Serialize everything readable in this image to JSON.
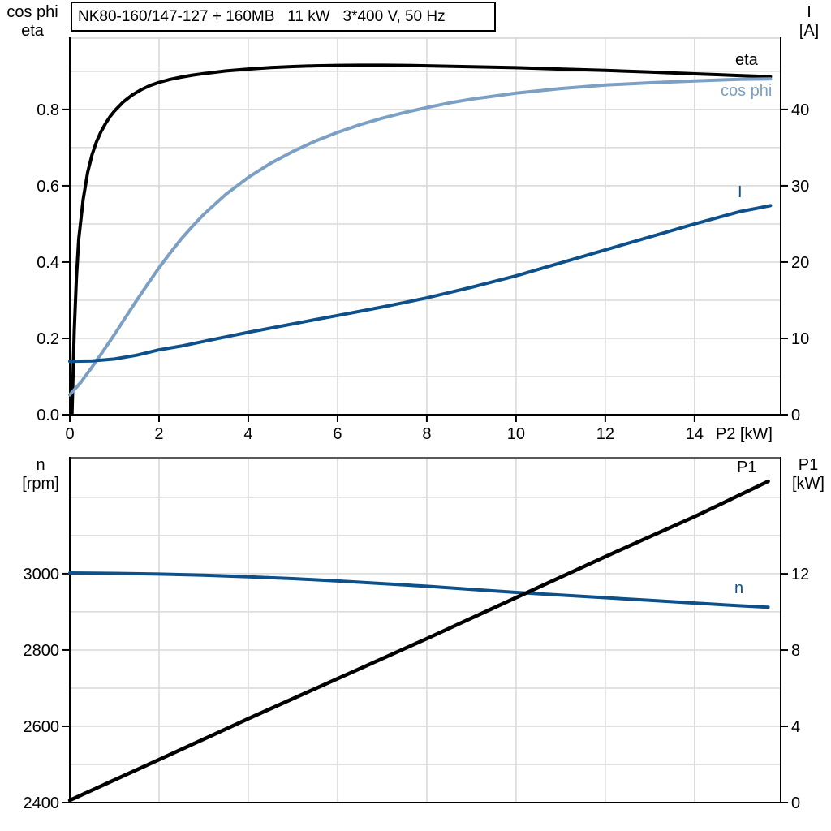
{
  "title_box": {
    "text": "NK80-160/147-127 + 160MB   11 kW   3*400 V, 50 Hz"
  },
  "corner_labels": {
    "top_left_line1": "cos phi",
    "top_left_line2": "eta",
    "top_right_line1": "I",
    "top_right_line2": "[A]",
    "bottom_left_line1": "n",
    "bottom_left_line2": "[rpm]",
    "bottom_right_line1": "P1",
    "bottom_right_line2": "[kW]"
  },
  "colors": {
    "black": "#000000",
    "light_blue": "#7BA0C4",
    "dark_blue": "#0E518A",
    "grid": "#D8D8D8",
    "frame_top_upper": "#D4D4D4",
    "frame_top_lower": "#595959",
    "axis": "#000000",
    "background": "#FFFFFF"
  },
  "chart_data": [
    {
      "type": "line",
      "title": "NK80-160/147-127 + 160MB   11 kW   3*400 V, 50 Hz",
      "xlabel": "P2 [kW]",
      "ylabel_left": "cos phi / eta",
      "ylabel_right": "I [A]",
      "x_range": [
        0,
        15.93
      ],
      "left_range": [
        0,
        0.987
      ],
      "right_range": [
        0,
        49.35
      ],
      "grid": true,
      "grid_x": [
        2,
        4,
        6,
        8,
        10,
        12,
        14
      ],
      "grid_left": [
        0.1,
        0.2,
        0.3,
        0.4,
        0.5,
        0.6,
        0.7,
        0.8,
        0.9
      ],
      "x_ticks": [
        [
          0,
          "0"
        ],
        [
          2,
          "2"
        ],
        [
          4,
          "4"
        ],
        [
          6,
          "6"
        ],
        [
          8,
          "8"
        ],
        [
          10,
          "10"
        ],
        [
          12,
          "12"
        ],
        [
          14,
          "14"
        ]
      ],
      "left_ticks": [
        [
          0,
          "0.0"
        ],
        [
          0.2,
          "0.2"
        ],
        [
          0.4,
          "0.4"
        ],
        [
          0.6,
          "0.6"
        ],
        [
          0.8,
          "0.8"
        ]
      ],
      "right_ticks": [
        [
          0,
          "0"
        ],
        [
          10,
          "10"
        ],
        [
          20,
          "20"
        ],
        [
          30,
          "30"
        ],
        [
          40,
          "40"
        ]
      ],
      "series": [
        {
          "name": "eta",
          "label": "eta",
          "color": "black",
          "axis": "left",
          "width": 4,
          "x": [
            0.05,
            0.1,
            0.15,
            0.2,
            0.3,
            0.4,
            0.5,
            0.6,
            0.7,
            0.8,
            0.9,
            1.0,
            1.2,
            1.4,
            1.6,
            1.8,
            2.0,
            2.25,
            2.5,
            2.75,
            3.0,
            3.5,
            4.0,
            4.5,
            5.0,
            5.5,
            6.0,
            6.5,
            7.0,
            7.5,
            8.0,
            9.0,
            10.0,
            11.0,
            12.0,
            13.0,
            14.0,
            15.0,
            15.7
          ],
          "y": [
            0.0,
            0.22,
            0.36,
            0.46,
            0.565,
            0.635,
            0.682,
            0.716,
            0.742,
            0.763,
            0.781,
            0.796,
            0.82,
            0.838,
            0.852,
            0.863,
            0.871,
            0.879,
            0.885,
            0.89,
            0.894,
            0.901,
            0.906,
            0.91,
            0.9125,
            0.9145,
            0.9155,
            0.916,
            0.916,
            0.9155,
            0.9145,
            0.912,
            0.9095,
            0.906,
            0.9025,
            0.898,
            0.8935,
            0.889,
            0.886
          ]
        },
        {
          "name": "cos phi",
          "label": "cos phi",
          "color": "light_blue",
          "axis": "left",
          "width": 4,
          "x": [
            0,
            0.25,
            0.5,
            0.75,
            1.0,
            1.25,
            1.5,
            1.75,
            2.0,
            2.25,
            2.5,
            2.75,
            3.0,
            3.5,
            4.0,
            4.5,
            5.0,
            5.5,
            6.0,
            6.5,
            7.0,
            7.5,
            8.0,
            8.5,
            9.0,
            9.5,
            10.0,
            11.0,
            12.0,
            13.0,
            14.0,
            15.0,
            15.7
          ],
          "y": [
            0.052,
            0.085,
            0.125,
            0.167,
            0.21,
            0.255,
            0.3,
            0.343,
            0.385,
            0.424,
            0.461,
            0.494,
            0.525,
            0.578,
            0.622,
            0.659,
            0.69,
            0.717,
            0.74,
            0.76,
            0.777,
            0.792,
            0.805,
            0.817,
            0.827,
            0.835,
            0.843,
            0.855,
            0.864,
            0.87,
            0.875,
            0.879,
            0.88
          ]
        },
        {
          "name": "I",
          "label": "I",
          "color": "dark_blue",
          "axis": "right",
          "width": 4,
          "x": [
            0,
            0.5,
            1.0,
            1.5,
            2.0,
            2.5,
            3.0,
            3.5,
            4.0,
            4.5,
            5.0,
            5.5,
            6.0,
            6.5,
            7.0,
            7.5,
            8.0,
            8.5,
            9.0,
            9.5,
            10.0,
            10.5,
            11.0,
            11.5,
            12.0,
            12.5,
            13.0,
            13.5,
            14.0,
            14.5,
            15.0,
            15.7
          ],
          "y": [
            7.0,
            7.05,
            7.3,
            7.8,
            8.5,
            9.0,
            9.6,
            10.2,
            10.8,
            11.35,
            11.9,
            12.45,
            13.0,
            13.55,
            14.1,
            14.7,
            15.3,
            16.0,
            16.7,
            17.45,
            18.2,
            19.05,
            19.9,
            20.75,
            21.6,
            22.45,
            23.3,
            24.15,
            25.0,
            25.8,
            26.6,
            27.4
          ]
        }
      ]
    },
    {
      "type": "line",
      "title": "",
      "xlabel": "",
      "ylabel_left": "n [rpm]",
      "ylabel_right": "P1 [kW]",
      "x_range": [
        0,
        15.93
      ],
      "left_range": [
        2400,
        3304
      ],
      "right_range": [
        0,
        18.09
      ],
      "grid": true,
      "grid_x": [
        2,
        4,
        6,
        8,
        10,
        12,
        14
      ],
      "grid_left": [
        2500,
        2600,
        2700,
        2800,
        2900,
        3000,
        3100,
        3200
      ],
      "x_ticks": [],
      "left_ticks": [
        [
          2400,
          "2400"
        ],
        [
          2600,
          "2600"
        ],
        [
          2800,
          "2800"
        ],
        [
          3000,
          "3000"
        ]
      ],
      "right_ticks": [
        [
          0,
          "0"
        ],
        [
          4,
          "4"
        ],
        [
          8,
          "8"
        ],
        [
          12,
          "12"
        ]
      ],
      "series": [
        {
          "name": "n",
          "label": "n",
          "color": "dark_blue",
          "axis": "left",
          "width": 4,
          "x": [
            0,
            1,
            2,
            3,
            4,
            5,
            6,
            7,
            8,
            9,
            10,
            11,
            12,
            13,
            14,
            15,
            15.65
          ],
          "y": [
            3002,
            3001,
            2999,
            2996,
            2992,
            2987,
            2981,
            2974,
            2967,
            2959,
            2951,
            2944,
            2937,
            2930,
            2923,
            2916,
            2912
          ]
        },
        {
          "name": "P1",
          "label": "P1",
          "color": "black",
          "axis": "right",
          "width": 4.5,
          "x": [
            0,
            2,
            4,
            6,
            8,
            10,
            12,
            14,
            15.65
          ],
          "y": [
            0.12,
            2.25,
            4.4,
            6.5,
            8.6,
            10.75,
            12.9,
            15.0,
            16.85
          ]
        }
      ]
    }
  ]
}
